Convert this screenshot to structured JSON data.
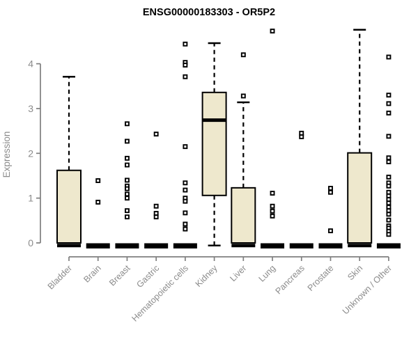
{
  "colors": {
    "background": "#FFFFFF",
    "title": "#000000",
    "axis": "#7F7F7F",
    "tick_label": "#8B8B8B",
    "box_fill": "#EEE8CD",
    "box_border": "#000000",
    "median": "#000000",
    "whisker": "#000000",
    "outlier": "#000000"
  },
  "chart_data": {
    "type": "boxplot",
    "title": "ENSG00000183303 - OR5P2",
    "xlabel": "",
    "ylabel": "Expression",
    "ylim": [
      0,
      4.8
    ],
    "yticks": [
      0,
      1,
      2,
      3,
      4
    ],
    "grid": false,
    "legend": "none",
    "categories": [
      "Bladder",
      "Brain",
      "Breast",
      "Gastric",
      "Hematopoietic cells",
      "Kidney",
      "Liver",
      "Lung",
      "Pancreas",
      "Prostate",
      "Skin",
      "Unknown / Other"
    ],
    "series": [
      {
        "name": "Bladder",
        "whisker_low": 0,
        "q1": 0,
        "median": 0.02,
        "q3": 1.62,
        "whisker_high": 3.71,
        "outliers": []
      },
      {
        "name": "Brain",
        "whisker_low": 0,
        "q1": 0,
        "median": 0,
        "q3": 0,
        "whisker_high": 0,
        "outliers": [
          1.39,
          0.91
        ]
      },
      {
        "name": "Breast",
        "whisker_low": 0,
        "q1": 0,
        "median": 0,
        "q3": 0,
        "whisker_high": 0,
        "outliers": [
          2.66,
          2.27,
          1.89,
          1.74,
          1.4,
          1.27,
          1.21,
          1.09,
          1.0,
          0.72,
          0.58
        ]
      },
      {
        "name": "Gastric",
        "whisker_low": 0,
        "q1": 0,
        "median": 0,
        "q3": 0,
        "whisker_high": 0,
        "outliers": [
          2.43,
          0.82,
          0.66,
          0.58
        ]
      },
      {
        "name": "Hematopoietic cells",
        "whisker_low": 0,
        "q1": 0,
        "median": 0,
        "q3": 0,
        "whisker_high": 0,
        "outliers": [
          4.44,
          4.03,
          3.97,
          3.71,
          2.15,
          1.34,
          1.18,
          1.0,
          0.93,
          0.67,
          0.42,
          0.31
        ]
      },
      {
        "name": "Kidney",
        "whisker_low": 0.02,
        "q1": 1.06,
        "median": 2.74,
        "q3": 3.36,
        "whisker_high": 4.46,
        "outliers": []
      },
      {
        "name": "Liver",
        "whisker_low": 0,
        "q1": 0,
        "median": 0.02,
        "q3": 1.23,
        "whisker_high": 3.14,
        "outliers": [
          4.2,
          3.28
        ]
      },
      {
        "name": "Lung",
        "whisker_low": 0,
        "q1": 0,
        "median": 0,
        "q3": 0,
        "whisker_high": 0,
        "outliers": [
          4.73,
          1.11,
          0.82,
          0.71,
          0.6
        ]
      },
      {
        "name": "Pancreas",
        "whisker_low": 0,
        "q1": 0,
        "median": 0,
        "q3": 0,
        "whisker_high": 0,
        "outliers": [
          2.45,
          2.37
        ]
      },
      {
        "name": "Prostate",
        "whisker_low": 0,
        "q1": 0,
        "median": 0,
        "q3": 0,
        "whisker_high": 0,
        "outliers": [
          1.22,
          1.13,
          0.27
        ]
      },
      {
        "name": "Skin",
        "whisker_low": 0,
        "q1": 0,
        "median": 0.02,
        "q3": 2.01,
        "whisker_high": 4.76,
        "outliers": []
      },
      {
        "name": "Unknown / Other",
        "whisker_low": 0,
        "q1": 0,
        "median": 0,
        "q3": 0,
        "whisker_high": 0,
        "outliers": [
          4.15,
          3.3,
          3.11,
          2.9,
          2.38,
          1.9,
          1.81,
          1.47,
          1.34,
          1.27,
          1.13,
          1.05,
          0.97,
          0.89,
          0.8,
          0.72,
          0.64,
          0.51,
          0.38,
          0.33,
          0.26,
          0.19
        ]
      }
    ]
  }
}
